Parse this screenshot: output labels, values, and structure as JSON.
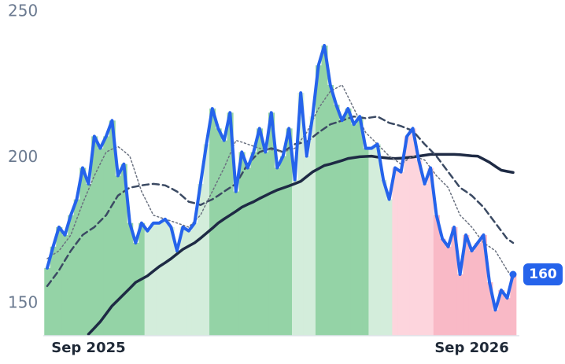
{
  "chart_data": {
    "type": "line",
    "categories": [
      null,
      null,
      null,
      null,
      null,
      null,
      null,
      "Sep 2025",
      null,
      null,
      null,
      null,
      null,
      null,
      null,
      null,
      null,
      null,
      null,
      null,
      null,
      null,
      null,
      null,
      null,
      null,
      null,
      null,
      null,
      null,
      null,
      null,
      null,
      null,
      null,
      null,
      null,
      null,
      null,
      null,
      null,
      null,
      null,
      null,
      null,
      null,
      null,
      null,
      null,
      null,
      null,
      null,
      null,
      null,
      null,
      null,
      null,
      null,
      null,
      null,
      null,
      null,
      null,
      null,
      null,
      null,
      null,
      null,
      null,
      null,
      null,
      null,
      "Sep 2026",
      null,
      null,
      null,
      null,
      null,
      null,
      null
    ],
    "ylim": [
      139,
      254
    ],
    "yticks": [
      150,
      200,
      250
    ],
    "series": [
      {
        "color": "#2563eb",
        "style": "solid",
        "width": 4,
        "values": [
          162.2,
          169.5,
          176.2,
          173.5,
          180.3,
          185.7,
          196.5,
          191,
          207.3,
          203.2,
          207.3,
          212.7,
          193.8,
          197.8,
          177.6,
          170.8,
          177.6,
          174.9,
          177.6,
          177.6,
          178.9,
          176.2,
          168.1,
          176.2,
          174.9,
          177.6,
          191,
          204.6,
          216.8,
          210,
          205.9,
          215.4,
          188.4,
          201.9,
          196.5,
          201.9,
          210,
          201.9,
          215.4,
          196.5,
          200.5,
          210,
          192.4,
          222.2,
          200.5,
          214.1,
          231.6,
          238.4,
          224.9,
          218.1,
          212.7,
          216.8,
          211.4,
          214.1,
          203.2,
          203.2,
          204.6,
          192.4,
          185.7,
          196.5,
          195.1,
          207.3,
          210,
          199.2,
          191,
          196.5,
          180.3,
          172.2,
          169.5,
          176.2,
          160,
          173.5,
          168.1,
          170.8,
          173.5,
          157.3,
          147.8,
          154.6,
          151.9,
          160
        ],
        "fill_colors": [
          "#94d3a6",
          "#94d3a6",
          "#94d3a6",
          "#94d3a6",
          "#94d3a6",
          "#94d3a6",
          "#94d3a6",
          "#94d3a6",
          "#94d3a6",
          "#94d3a6",
          "#94d3a6",
          "#94d3a6",
          "#94d3a6",
          "#94d3a6",
          "#94d3a6",
          "#94d3a6",
          "#94d3a6",
          "#d3eddb",
          "#d3eddb",
          "#d3eddb",
          "#d3eddb",
          "#d3eddb",
          "#d3eddb",
          "#d3eddb",
          "#d3eddb",
          "#d3eddb",
          "#d3eddb",
          "#d3eddb",
          "#94d3a6",
          "#94d3a6",
          "#94d3a6",
          "#94d3a6",
          "#94d3a6",
          "#94d3a6",
          "#94d3a6",
          "#94d3a6",
          "#94d3a6",
          "#94d3a6",
          "#94d3a6",
          "#94d3a6",
          "#94d3a6",
          "#94d3a6",
          "#d3eddb",
          "#d3eddb",
          "#d3eddb",
          "#d3eddb",
          "#94d3a6",
          "#94d3a6",
          "#94d3a6",
          "#94d3a6",
          "#94d3a6",
          "#94d3a6",
          "#94d3a6",
          "#94d3a6",
          "#94d3a6",
          "#d3eddb",
          "#d3eddb",
          "#d3eddb",
          "#d3eddb",
          "#fdd5dd",
          "#fdd5dd",
          "#fdd5dd",
          "#fdd5dd",
          "#fdd5dd",
          "#fdd5dd",
          "#fdd5dd",
          "#f9b9c6",
          "#f9b9c6",
          "#f9b9c6",
          "#f9b9c6",
          "#f9b9c6",
          "#f9b9c6",
          "#f9b9c6",
          "#f9b9c6",
          "#f9b9c6",
          "#f9b9c6",
          "#f9b9c6",
          "#f9b9c6",
          "#f9b9c6",
          "#f9b9c6"
        ]
      },
      {
        "color": "#6b7280",
        "style": "dotted",
        "width": 1.5,
        "values": [
          165.4,
          166.8,
          168.1,
          170.8,
          173.5,
          178.9,
          184.3,
          189.1,
          193.8,
          197.9,
          201.9,
          202.9,
          203.8,
          202.2,
          200.5,
          194.5,
          188.4,
          184.4,
          180.3,
          179.6,
          178.9,
          178.3,
          177.6,
          176.9,
          176.2,
          178.3,
          180.3,
          184.4,
          188.4,
          192.5,
          196.5,
          201.2,
          205.9,
          205.3,
          204.6,
          203.9,
          203.2,
          203,
          202.7,
          202.3,
          201.9,
          202.6,
          203.2,
          205.9,
          208.6,
          212.7,
          216.8,
          219.8,
          222.7,
          223.8,
          224.9,
          220.9,
          216.8,
          212.7,
          208.6,
          206.6,
          204.6,
          202.6,
          200.5,
          199.2,
          197.8,
          199.2,
          200.5,
          199.9,
          199.2,
          196.5,
          193.8,
          191.8,
          189.7,
          185,
          180.3,
          178.3,
          176.2,
          173.5,
          170.8,
          169.5,
          168.1,
          164.8,
          161.4,
          158.6
        ]
      },
      {
        "color": "#3b4a63",
        "style": "dashed",
        "width": 2.5,
        "values": [
          156,
          158.7,
          161.4,
          164.8,
          168.1,
          170.8,
          173.5,
          174.9,
          176.2,
          178.3,
          180.3,
          183.7,
          187,
          188.4,
          189.7,
          190.1,
          190.5,
          190.8,
          191,
          190.8,
          190.5,
          189.5,
          188.4,
          186.7,
          184.9,
          184.4,
          183.8,
          184.8,
          185.7,
          187,
          188.4,
          189.7,
          191,
          194.4,
          197.8,
          199.9,
          201.9,
          202.6,
          203.2,
          202.6,
          201.9,
          203.3,
          204.6,
          205,
          205.4,
          207,
          208.6,
          210,
          211.4,
          212,
          212.7,
          213.4,
          214.1,
          213.8,
          213.5,
          213.8,
          214.1,
          213,
          211.9,
          211.4,
          210.8,
          210,
          209.2,
          206.9,
          204.6,
          202.6,
          200.5,
          197.8,
          195.1,
          192.4,
          189.7,
          188.4,
          187,
          185,
          183,
          180.3,
          177.6,
          174.9,
          172.2,
          170.8
        ]
      },
      {
        "color": "#1e2a44",
        "style": "solid",
        "width": 3.5,
        "values": [
          null,
          null,
          null,
          null,
          null,
          null,
          null,
          139.5,
          141.6,
          143.8,
          146.5,
          149.2,
          151.2,
          153.2,
          155.2,
          157.3,
          158.4,
          159.5,
          161.1,
          162.7,
          164,
          165.4,
          167,
          168.6,
          169.7,
          170.8,
          172.4,
          174.1,
          175.8,
          177.6,
          179,
          180.3,
          181.6,
          183,
          184,
          184.9,
          186,
          187,
          188,
          188.9,
          189.6,
          190.3,
          191.1,
          191.9,
          193.5,
          195.1,
          196.2,
          197.3,
          197.8,
          198.4,
          199,
          199.7,
          200,
          200.3,
          200.4,
          200.5,
          200.2,
          200,
          199.8,
          199.7,
          199.8,
          200,
          200.2,
          200.5,
          200.8,
          201.1,
          201.1,
          201.1,
          201.1,
          201.1,
          201,
          200.8,
          200.6,
          200.5,
          199.5,
          198.4,
          197,
          195.7,
          195.3,
          194.9
        ]
      }
    ]
  }
}
